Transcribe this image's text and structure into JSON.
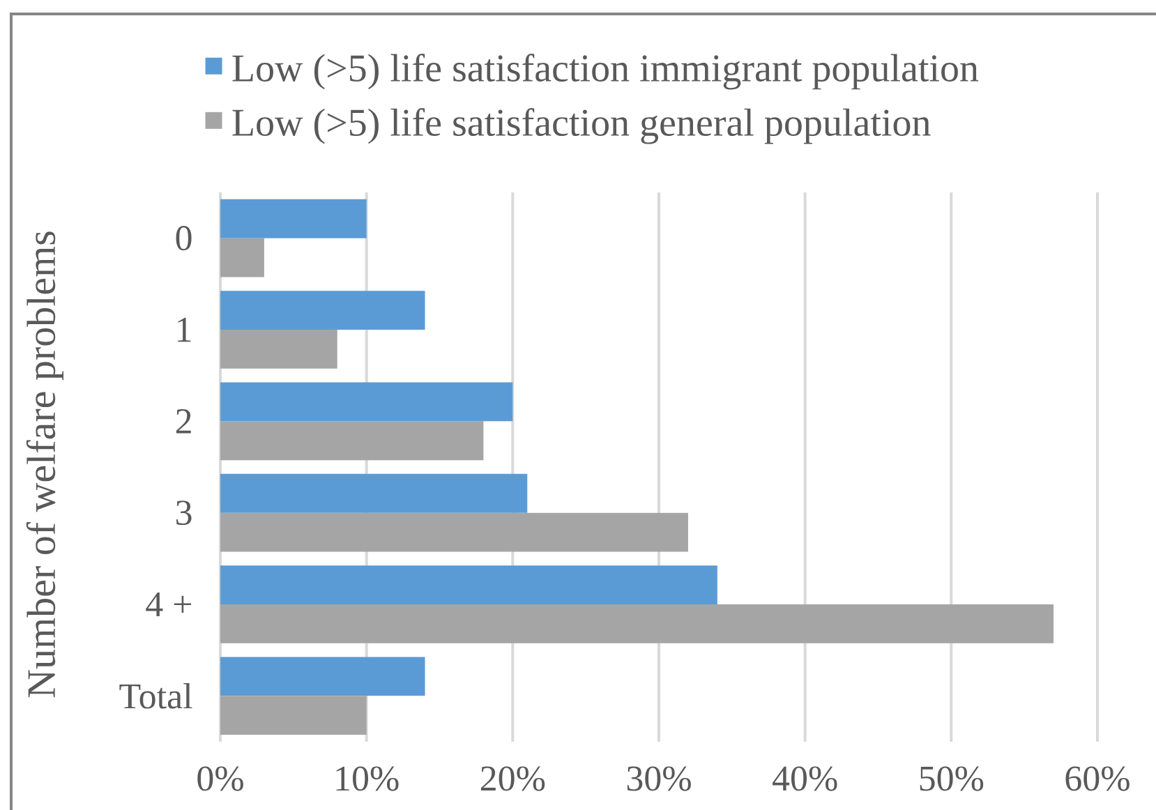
{
  "chart_data": {
    "type": "bar",
    "orientation": "horizontal",
    "ylabel": "Number of welfare problems",
    "categories": [
      "0",
      "1",
      "2",
      "3",
      "4 +",
      "Total"
    ],
    "series": [
      {
        "name": "Low (>5) life satisfaction immigrant population",
        "color": "#5b9bd5",
        "values": [
          10,
          14,
          20,
          21,
          34,
          14
        ]
      },
      {
        "name": "Low (>5) life satisfaction general population",
        "color": "#a5a5a5",
        "values": [
          3,
          8,
          18,
          32,
          57,
          10
        ]
      }
    ],
    "xlim": [
      0,
      60
    ],
    "xticks": [
      {
        "value": 0,
        "label": "0%"
      },
      {
        "value": 10,
        "label": "10%"
      },
      {
        "value": 20,
        "label": "20%"
      },
      {
        "value": 30,
        "label": "30%"
      },
      {
        "value": 40,
        "label": "40%"
      },
      {
        "value": 50,
        "label": "50%"
      },
      {
        "value": 60,
        "label": "60%"
      }
    ],
    "grid": "x",
    "legend": "top"
  }
}
